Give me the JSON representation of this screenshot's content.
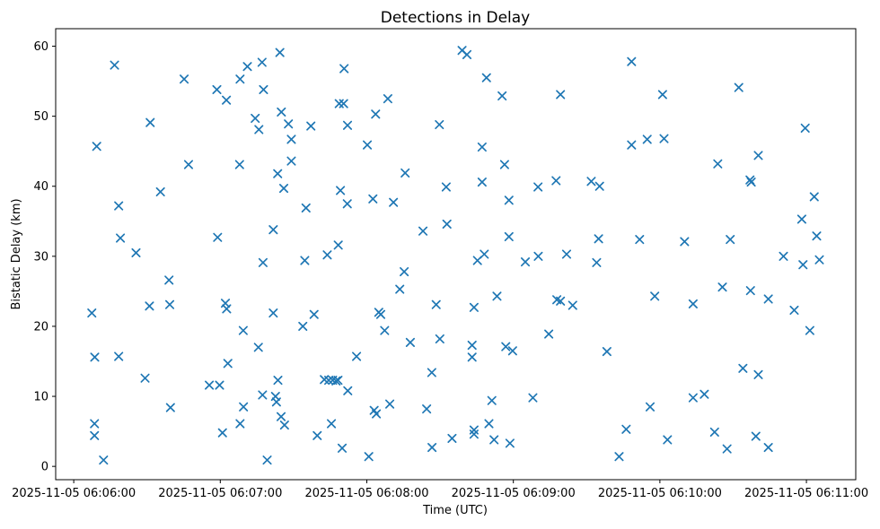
{
  "chart_data": {
    "type": "scatter",
    "title": "Detections in Delay",
    "xlabel": "Time (UTC)",
    "ylabel": "Bistatic Delay (km)",
    "marker": "x",
    "marker_color": "#1f77b4",
    "frame_color": "#000000",
    "legend": "none",
    "grid": false,
    "x_unit": "seconds after 2025-11-05 06:06:00 UTC",
    "xlim": [
      -7.4,
      320.2
    ],
    "ylim": [
      -1.9,
      62.5
    ],
    "x_ticks": [
      {
        "t": 0,
        "label": "2025-11-05 06:06:00"
      },
      {
        "t": 60,
        "label": "2025-11-05 06:07:00"
      },
      {
        "t": 120,
        "label": "2025-11-05 06:08:00"
      },
      {
        "t": 180,
        "label": "2025-11-05 06:09:00"
      },
      {
        "t": 240,
        "label": "2025-11-05 06:10:00"
      },
      {
        "t": 300,
        "label": "2025-11-05 06:11:00"
      }
    ],
    "y_ticks": [
      {
        "v": 0,
        "label": "0"
      },
      {
        "v": 10,
        "label": "10"
      },
      {
        "v": 20,
        "label": "20"
      },
      {
        "v": 30,
        "label": "30"
      },
      {
        "v": 40,
        "label": "40"
      },
      {
        "v": 50,
        "label": "50"
      },
      {
        "v": 60,
        "label": "60"
      }
    ],
    "points": [
      [
        16.7,
        57.3
      ],
      [
        45.2,
        55.3
      ],
      [
        31.3,
        49.1
      ],
      [
        9.4,
        45.7
      ],
      [
        47.0,
        43.1
      ],
      [
        35.5,
        39.2
      ],
      [
        18.4,
        37.2
      ],
      [
        19.1,
        32.6
      ],
      [
        25.5,
        30.5
      ],
      [
        39.0,
        26.6
      ],
      [
        31.0,
        22.9
      ],
      [
        39.3,
        23.1
      ],
      [
        7.4,
        21.9
      ],
      [
        8.6,
        15.6
      ],
      [
        18.4,
        15.7
      ],
      [
        29.2,
        12.6
      ],
      [
        39.6,
        8.4
      ],
      [
        8.5,
        6.1
      ],
      [
        8.5,
        4.4
      ],
      [
        12.2,
        0.9
      ],
      [
        84.4,
        59.1
      ],
      [
        77.1,
        57.7
      ],
      [
        71.1,
        57.1
      ],
      [
        68.1,
        55.3
      ],
      [
        58.6,
        53.8
      ],
      [
        77.7,
        53.8
      ],
      [
        62.5,
        52.3
      ],
      [
        85.0,
        50.6
      ],
      [
        74.3,
        49.7
      ],
      [
        75.8,
        48.1
      ],
      [
        87.9,
        48.9
      ],
      [
        97.1,
        48.6
      ],
      [
        89.1,
        46.7
      ],
      [
        67.9,
        43.1
      ],
      [
        89.1,
        43.6
      ],
      [
        83.5,
        41.8
      ],
      [
        86.0,
        39.7
      ],
      [
        95.1,
        36.9
      ],
      [
        81.7,
        33.8
      ],
      [
        58.9,
        32.7
      ],
      [
        77.5,
        29.1
      ],
      [
        94.6,
        29.4
      ],
      [
        62.1,
        23.3
      ],
      [
        62.6,
        22.5
      ],
      [
        81.7,
        21.9
      ],
      [
        98.4,
        21.7
      ],
      [
        93.8,
        20.0
      ],
      [
        69.4,
        19.4
      ],
      [
        75.6,
        17.0
      ],
      [
        63.1,
        14.7
      ],
      [
        83.6,
        12.3
      ],
      [
        55.5,
        11.6
      ],
      [
        59.7,
        11.6
      ],
      [
        77.3,
        10.2
      ],
      [
        82.6,
        10.0
      ],
      [
        83.0,
        9.2
      ],
      [
        69.5,
        8.5
      ],
      [
        84.9,
        7.1
      ],
      [
        86.3,
        5.9
      ],
      [
        68.1,
        6.1
      ],
      [
        60.9,
        4.8
      ],
      [
        99.7,
        4.4
      ],
      [
        79.2,
        0.9
      ],
      [
        110.7,
        56.8
      ],
      [
        108.7,
        51.8
      ],
      [
        110.5,
        51.8
      ],
      [
        128.6,
        52.5
      ],
      [
        123.6,
        50.3
      ],
      [
        112.1,
        48.7
      ],
      [
        149.7,
        48.8
      ],
      [
        120.2,
        45.9
      ],
      [
        135.7,
        41.9
      ],
      [
        109.2,
        39.4
      ],
      [
        152.5,
        39.9
      ],
      [
        112.0,
        37.5
      ],
      [
        122.5,
        38.2
      ],
      [
        130.9,
        37.7
      ],
      [
        152.8,
        34.6
      ],
      [
        143.0,
        33.6
      ],
      [
        108.3,
        31.6
      ],
      [
        103.8,
        30.2
      ],
      [
        135.3,
        27.8
      ],
      [
        133.5,
        25.3
      ],
      [
        148.4,
        23.1
      ],
      [
        124.9,
        22.0
      ],
      [
        125.7,
        21.7
      ],
      [
        127.3,
        19.4
      ],
      [
        137.8,
        17.7
      ],
      [
        149.9,
        18.2
      ],
      [
        115.8,
        15.7
      ],
      [
        146.6,
        13.4
      ],
      [
        102.6,
        12.4
      ],
      [
        104.4,
        12.3
      ],
      [
        106.0,
        12.3
      ],
      [
        107.4,
        12.2
      ],
      [
        108.2,
        12.3
      ],
      [
        112.2,
        10.8
      ],
      [
        129.4,
        8.9
      ],
      [
        123.0,
        8.0
      ],
      [
        123.9,
        7.5
      ],
      [
        144.5,
        8.2
      ],
      [
        105.5,
        6.1
      ],
      [
        154.9,
        4.0
      ],
      [
        109.9,
        2.6
      ],
      [
        146.7,
        2.7
      ],
      [
        120.8,
        1.4
      ],
      [
        159.0,
        59.4
      ],
      [
        161.0,
        58.8
      ],
      [
        169.0,
        55.5
      ],
      [
        175.4,
        52.9
      ],
      [
        199.3,
        53.1
      ],
      [
        167.2,
        45.6
      ],
      [
        176.4,
        43.1
      ],
      [
        167.2,
        40.6
      ],
      [
        190.1,
        39.9
      ],
      [
        197.5,
        40.8
      ],
      [
        178.2,
        38.0
      ],
      [
        178.2,
        32.8
      ],
      [
        165.3,
        29.4
      ],
      [
        168.1,
        30.3
      ],
      [
        184.9,
        29.2
      ],
      [
        190.2,
        30.0
      ],
      [
        201.8,
        30.3
      ],
      [
        173.3,
        24.3
      ],
      [
        163.9,
        22.7
      ],
      [
        197.8,
        23.8
      ],
      [
        199.3,
        23.6
      ],
      [
        204.3,
        23.0
      ],
      [
        194.5,
        18.9
      ],
      [
        163.1,
        17.3
      ],
      [
        176.9,
        17.1
      ],
      [
        179.7,
        16.5
      ],
      [
        163.1,
        15.6
      ],
      [
        171.2,
        9.4
      ],
      [
        188.0,
        9.8
      ],
      [
        170.0,
        6.1
      ],
      [
        163.9,
        5.2
      ],
      [
        163.9,
        4.6
      ],
      [
        172.1,
        3.8
      ],
      [
        178.6,
        3.3
      ],
      [
        228.4,
        57.8
      ],
      [
        241.1,
        53.1
      ],
      [
        228.4,
        45.9
      ],
      [
        234.8,
        46.7
      ],
      [
        241.7,
        46.8
      ],
      [
        263.7,
        43.2
      ],
      [
        211.9,
        40.7
      ],
      [
        215.3,
        40.0
      ],
      [
        214.9,
        32.5
      ],
      [
        231.7,
        32.4
      ],
      [
        250.1,
        32.1
      ],
      [
        214.1,
        29.1
      ],
      [
        237.9,
        24.3
      ],
      [
        253.6,
        23.2
      ],
      [
        218.3,
        16.4
      ],
      [
        253.6,
        9.8
      ],
      [
        258.2,
        10.3
      ],
      [
        236.0,
        8.5
      ],
      [
        226.2,
        5.3
      ],
      [
        243.1,
        3.8
      ],
      [
        262.4,
        4.9
      ],
      [
        223.3,
        1.4
      ],
      [
        272.3,
        54.1
      ],
      [
        299.5,
        48.3
      ],
      [
        280.3,
        44.4
      ],
      [
        276.9,
        40.9
      ],
      [
        277.4,
        40.6
      ],
      [
        303.2,
        38.5
      ],
      [
        298.1,
        35.3
      ],
      [
        268.8,
        32.4
      ],
      [
        304.2,
        32.9
      ],
      [
        290.6,
        30.0
      ],
      [
        298.6,
        28.8
      ],
      [
        305.3,
        29.5
      ],
      [
        265.6,
        25.6
      ],
      [
        277.1,
        25.1
      ],
      [
        284.4,
        23.9
      ],
      [
        295.0,
        22.3
      ],
      [
        301.4,
        19.4
      ],
      [
        274.0,
        14.0
      ],
      [
        280.3,
        13.1
      ],
      [
        279.3,
        4.3
      ],
      [
        267.5,
        2.5
      ],
      [
        284.4,
        2.7
      ]
    ]
  }
}
